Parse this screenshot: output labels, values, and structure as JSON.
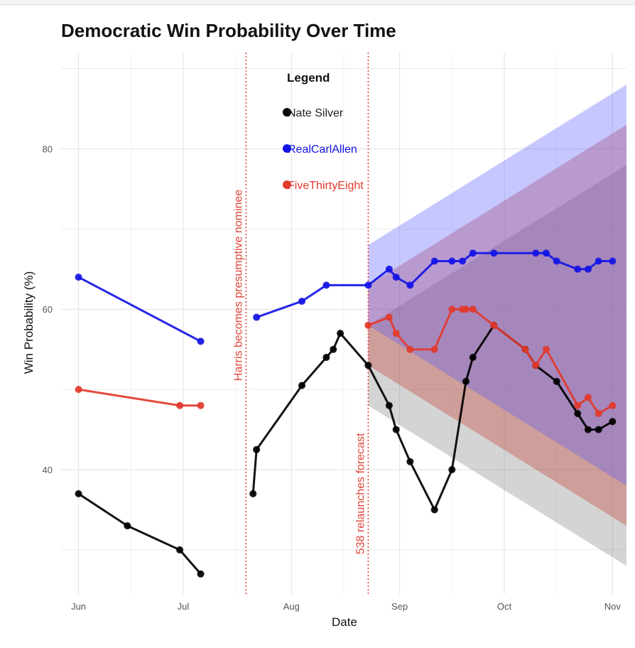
{
  "chart_data": {
    "type": "line",
    "title": "Democratic Win Probability Over Time",
    "xlabel": "Date",
    "ylabel": "Win Probability (%)",
    "x_tick_labels": [
      "Jun",
      "Jul",
      "Aug",
      "Sep",
      "Oct",
      "Nov"
    ],
    "x_tick_dates": [
      "2024-06-01",
      "2024-07-01",
      "2024-08-01",
      "2024-09-01",
      "2024-10-01",
      "2024-11-01"
    ],
    "xlim": [
      "2024-05-27",
      "2024-11-05"
    ],
    "y_ticks": [
      40,
      60,
      80
    ],
    "ylim": [
      24.5,
      92
    ],
    "grid": true,
    "legend": {
      "title": "Legend",
      "placement": "top-center",
      "items": [
        "Nate Silver",
        "RealCarlAllen",
        "FiveThirtyEight"
      ]
    },
    "series": [
      {
        "name": "Nate Silver",
        "color": "#000000",
        "segments": [
          [
            [
              "2024-06-01",
              37
            ],
            [
              "2024-06-15",
              33
            ],
            [
              "2024-06-30",
              30
            ],
            [
              "2024-07-06",
              27
            ]
          ],
          [
            [
              "2024-07-21",
              37
            ],
            [
              "2024-07-22",
              42.5
            ],
            [
              "2024-08-04",
              50.5
            ],
            [
              "2024-08-11",
              54
            ],
            [
              "2024-08-13",
              55
            ],
            [
              "2024-08-15",
              57
            ],
            [
              "2024-08-23",
              53
            ],
            [
              "2024-08-29",
              48
            ],
            [
              "2024-08-31",
              45
            ],
            [
              "2024-09-04",
              41
            ],
            [
              "2024-09-11",
              35
            ],
            [
              "2024-09-16",
              40
            ],
            [
              "2024-09-20",
              51
            ],
            [
              "2024-09-22",
              54
            ],
            [
              "2024-09-28",
              58
            ],
            [
              "2024-10-07",
              55
            ],
            [
              "2024-10-10",
              53
            ],
            [
              "2024-10-16",
              51
            ],
            [
              "2024-10-22",
              47
            ],
            [
              "2024-10-25",
              45
            ],
            [
              "2024-10-28",
              45
            ],
            [
              "2024-11-01",
              46
            ]
          ]
        ]
      },
      {
        "name": "RealCarlAllen",
        "color": "#1414e6",
        "segments": [
          [
            [
              "2024-06-01",
              64
            ],
            [
              "2024-07-06",
              56
            ]
          ],
          [
            [
              "2024-07-22",
              59
            ],
            [
              "2024-08-04",
              61
            ],
            [
              "2024-08-11",
              63
            ],
            [
              "2024-08-23",
              63
            ],
            [
              "2024-08-29",
              65
            ],
            [
              "2024-08-31",
              64
            ],
            [
              "2024-09-04",
              63
            ],
            [
              "2024-09-11",
              66
            ],
            [
              "2024-09-16",
              66
            ],
            [
              "2024-09-19",
              66
            ],
            [
              "2024-09-22",
              67
            ],
            [
              "2024-09-28",
              67
            ],
            [
              "2024-10-10",
              67
            ],
            [
              "2024-10-13",
              67
            ],
            [
              "2024-10-16",
              66
            ],
            [
              "2024-10-22",
              65
            ],
            [
              "2024-10-25",
              65
            ],
            [
              "2024-10-28",
              66
            ],
            [
              "2024-11-01",
              66
            ]
          ]
        ]
      },
      {
        "name": "FiveThirtyEight",
        "color": "#e23a2c",
        "segments": [
          [
            [
              "2024-06-01",
              50
            ],
            [
              "2024-06-30",
              48
            ],
            [
              "2024-07-06",
              48
            ]
          ],
          [
            [
              "2024-08-23",
              58
            ],
            [
              "2024-08-29",
              59
            ],
            [
              "2024-08-31",
              57
            ],
            [
              "2024-09-04",
              55
            ],
            [
              "2024-09-11",
              55
            ],
            [
              "2024-09-16",
              60
            ],
            [
              "2024-09-19",
              60
            ],
            [
              "2024-09-20",
              60
            ],
            [
              "2024-09-22",
              60
            ],
            [
              "2024-09-28",
              58
            ],
            [
              "2024-10-07",
              55
            ],
            [
              "2024-10-10",
              53
            ],
            [
              "2024-10-13",
              55
            ],
            [
              "2024-10-22",
              48
            ],
            [
              "2024-10-25",
              49
            ],
            [
              "2024-10-28",
              47
            ],
            [
              "2024-11-01",
              48
            ]
          ]
        ]
      }
    ],
    "projection_bands": [
      {
        "series": "Nate Silver",
        "color": "#808080",
        "start": "2024-08-23",
        "end": "2024-11-05",
        "start_range": [
          48,
          58
        ],
        "end_range": [
          28,
          78
        ]
      },
      {
        "series": "FiveThirtyEight",
        "color": "#c0392b",
        "start": "2024-08-23",
        "end": "2024-11-05",
        "start_range": [
          53,
          63
        ],
        "end_range": [
          33,
          83
        ]
      },
      {
        "series": "RealCarlAllen",
        "color": "#5a5aff",
        "start": "2024-08-23",
        "end": "2024-11-05",
        "start_range": [
          58,
          68
        ],
        "end_range": [
          38,
          88
        ]
      }
    ],
    "annotations": [
      {
        "date": "2024-07-19",
        "text": "Harris becomes presumptive nominee",
        "y": 63
      },
      {
        "date": "2024-08-23",
        "text": "538 relaunches forecast",
        "y": 37
      }
    ]
  }
}
